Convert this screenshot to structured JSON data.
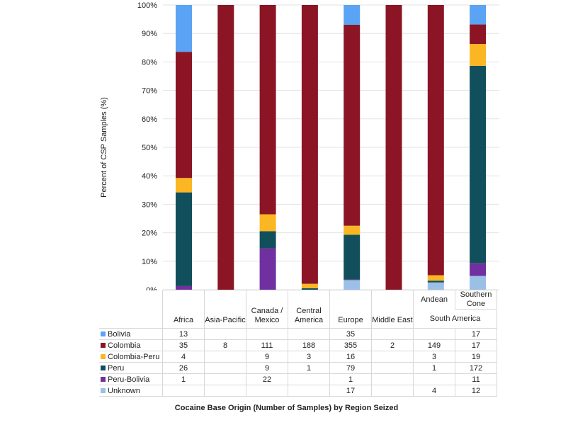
{
  "chart_data": {
    "type": "bar",
    "stacked": "percent",
    "title": "",
    "xlabel": "Cocaine Base Origin (Number of Samples) by Region Seized",
    "ylabel": "Percent of CSP Samples (%)",
    "ylim": [
      0,
      100
    ],
    "yticks": [
      "0%",
      "10%",
      "20%",
      "30%",
      "40%",
      "50%",
      "60%",
      "70%",
      "80%",
      "90%",
      "100%"
    ],
    "categories": [
      "Africa",
      "Asia-Pacific",
      "Canada / Mexico",
      "Central America",
      "Europe",
      "Middle East",
      "Andean",
      "Southern Cone"
    ],
    "group_label": "South America",
    "series": [
      {
        "name": "Bolivia",
        "color": "#5ba3f5",
        "values": [
          13,
          null,
          null,
          null,
          35,
          null,
          null,
          17
        ]
      },
      {
        "name": "Colombia",
        "color": "#8b1525",
        "values": [
          35,
          8,
          111,
          188,
          355,
          2,
          149,
          17
        ]
      },
      {
        "name": "Colombia-Peru",
        "color": "#fbb623",
        "values": [
          4,
          null,
          9,
          3,
          16,
          null,
          3,
          19
        ]
      },
      {
        "name": "Peru",
        "color": "#124f5c",
        "values": [
          26,
          null,
          9,
          1,
          79,
          null,
          1,
          172
        ]
      },
      {
        "name": "Peru-Bolivia",
        "color": "#7030a0",
        "values": [
          1,
          null,
          22,
          null,
          1,
          null,
          null,
          11
        ]
      },
      {
        "name": "Unknown",
        "color": "#9cbfe6",
        "values": [
          null,
          null,
          null,
          null,
          17,
          null,
          4,
          12
        ]
      }
    ],
    "grid": true
  }
}
